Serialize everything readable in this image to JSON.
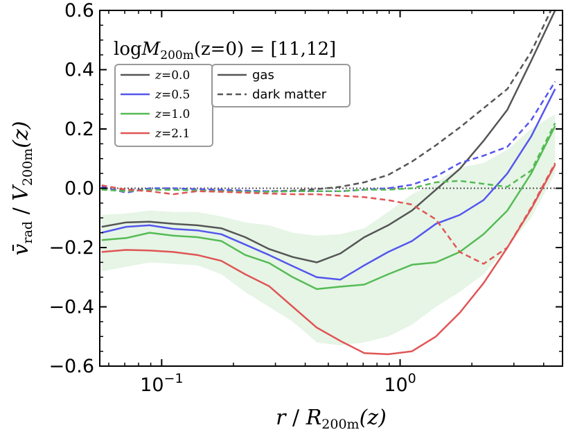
{
  "chart_data": {
    "type": "line",
    "title": "logM200m(z=0) = [11,12]",
    "title_parts": {
      "log": "log",
      "M": "M",
      "sub": "200m",
      "rest": "(z=0) = [11,12]"
    },
    "xlabel": "r / R200m(z)",
    "xlabel_parts": {
      "r": "r",
      "slash": " / ",
      "R": "R",
      "sub": "200m",
      "z": "(z)"
    },
    "ylabel": "v̄rad / V200m(z)",
    "ylabel_parts": {
      "v": "v̄",
      "vsub": "rad",
      "slash": " / ",
      "V": "V",
      "Vsub": "200m",
      "z": "(z)"
    },
    "xscale": "log",
    "xlim": [
      0.055,
      4.8
    ],
    "ylim": [
      -0.6,
      0.6
    ],
    "x_ticks": [
      {
        "value": 0.1,
        "label": "10−1"
      },
      {
        "value": 1.0,
        "label": "100"
      }
    ],
    "x_tick_base": "10",
    "x_tick_exps": [
      "−1",
      "0"
    ],
    "y_ticks": [
      -0.6,
      -0.4,
      -0.2,
      0.0,
      0.2,
      0.4,
      0.6
    ],
    "y_tick_labels": [
      "−0.6",
      "−0.4",
      "−0.2",
      "0.0",
      "0.2",
      "0.4",
      "0.6"
    ],
    "reference_line": {
      "y": 0.0,
      "style": "dotted",
      "color": "#555555"
    },
    "x": [
      0.056,
      0.071,
      0.089,
      0.112,
      0.141,
      0.178,
      0.224,
      0.282,
      0.355,
      0.447,
      0.562,
      0.708,
      0.891,
      1.122,
      1.413,
      1.778,
      2.239,
      2.818,
      3.548,
      4.467
    ],
    "series": [
      {
        "z": "z = 0.0",
        "kind": "gas",
        "color": "#555555",
        "values": [
          -0.13,
          -0.115,
          -0.113,
          -0.12,
          -0.125,
          -0.135,
          -0.165,
          -0.205,
          -0.232,
          -0.25,
          -0.22,
          -0.165,
          -0.125,
          -0.075,
          -0.005,
          0.065,
          0.16,
          0.265,
          0.43,
          0.6
        ]
      },
      {
        "z": "z = 0.5",
        "kind": "gas",
        "color": "#5555ee",
        "values": [
          -0.15,
          -0.13,
          -0.125,
          -0.137,
          -0.142,
          -0.155,
          -0.19,
          -0.225,
          -0.263,
          -0.3,
          -0.308,
          -0.26,
          -0.215,
          -0.178,
          -0.12,
          -0.09,
          -0.04,
          0.05,
          0.175,
          0.335
        ]
      },
      {
        "z": "z = 1.0",
        "kind": "gas",
        "color": "#55bb55",
        "values": [
          -0.175,
          -0.168,
          -0.15,
          -0.16,
          -0.165,
          -0.178,
          -0.225,
          -0.252,
          -0.3,
          -0.34,
          -0.332,
          -0.325,
          -0.29,
          -0.258,
          -0.25,
          -0.215,
          -0.155,
          -0.075,
          0.05,
          0.21
        ]
      },
      {
        "z": "z = 2.1",
        "kind": "gas",
        "color": "#e05555",
        "values": [
          -0.215,
          -0.208,
          -0.21,
          -0.215,
          -0.225,
          -0.245,
          -0.29,
          -0.33,
          -0.4,
          -0.47,
          -0.515,
          -0.556,
          -0.56,
          -0.55,
          -0.5,
          -0.42,
          -0.32,
          -0.2,
          -0.07,
          0.08
        ]
      },
      {
        "z": "z = 0.0",
        "kind": "dark matter",
        "color": "#555555",
        "values": [
          -0.005,
          -0.005,
          -0.005,
          -0.005,
          -0.007,
          -0.008,
          -0.01,
          -0.01,
          -0.008,
          -0.003,
          0.005,
          0.02,
          0.045,
          0.09,
          0.145,
          0.205,
          0.27,
          0.335,
          0.46,
          0.63
        ]
      },
      {
        "z": "z = 0.5",
        "kind": "dark matter",
        "color": "#5555ee",
        "values": [
          0.005,
          -0.015,
          0.0,
          0.0,
          -0.003,
          -0.005,
          -0.008,
          -0.01,
          -0.01,
          -0.01,
          -0.01,
          -0.005,
          0.0,
          0.012,
          0.04,
          0.085,
          0.11,
          0.14,
          0.23,
          0.36
        ]
      },
      {
        "z": "z = 1.0",
        "kind": "dark matter",
        "color": "#55bb55",
        "values": [
          -0.005,
          -0.01,
          -0.005,
          -0.005,
          -0.008,
          -0.01,
          -0.012,
          -0.012,
          -0.01,
          -0.01,
          -0.01,
          -0.005,
          -0.005,
          0.0,
          0.02,
          0.025,
          0.015,
          0.005,
          0.06,
          0.22
        ]
      },
      {
        "z": "z = 2.1",
        "kind": "dark matter",
        "color": "#e05555",
        "values": [
          0.01,
          -0.005,
          -0.01,
          -0.02,
          -0.01,
          -0.012,
          -0.015,
          -0.018,
          -0.02,
          -0.02,
          -0.025,
          -0.03,
          -0.04,
          -0.055,
          -0.105,
          -0.215,
          -0.255,
          -0.2,
          -0.065,
          0.085
        ]
      }
    ],
    "band": {
      "color": "#55bb55",
      "opacity": 0.15,
      "lower": [
        -0.28,
        -0.265,
        -0.25,
        -0.255,
        -0.26,
        -0.29,
        -0.35,
        -0.4,
        -0.45,
        -0.52,
        -0.53,
        -0.52,
        -0.5,
        -0.46,
        -0.4,
        -0.35,
        -0.29,
        -0.2,
        -0.1,
        0.05
      ],
      "upper": [
        -0.09,
        -0.085,
        -0.075,
        -0.08,
        -0.08,
        -0.095,
        -0.115,
        -0.125,
        -0.15,
        -0.16,
        -0.155,
        -0.135,
        -0.08,
        -0.02,
        0.02,
        0.07,
        0.085,
        0.13,
        0.2,
        0.25
      ]
    },
    "legend_z": [
      {
        "label_z": "z",
        "label_eq": "=",
        "label_val": "0.0",
        "color": "#555555"
      },
      {
        "label_z": "z",
        "label_eq": "=",
        "label_val": "0.5",
        "color": "#5555ee"
      },
      {
        "label_z": "z",
        "label_eq": "=",
        "label_val": "1.0",
        "color": "#55bb55"
      },
      {
        "label_z": "z",
        "label_eq": "=",
        "label_val": "2.1",
        "color": "#e05555"
      }
    ],
    "legend_kind": [
      {
        "label": "gas",
        "style": "solid"
      },
      {
        "label": "dark matter",
        "style": "dashed"
      }
    ],
    "legend_placement": "top-left",
    "grid": false
  }
}
